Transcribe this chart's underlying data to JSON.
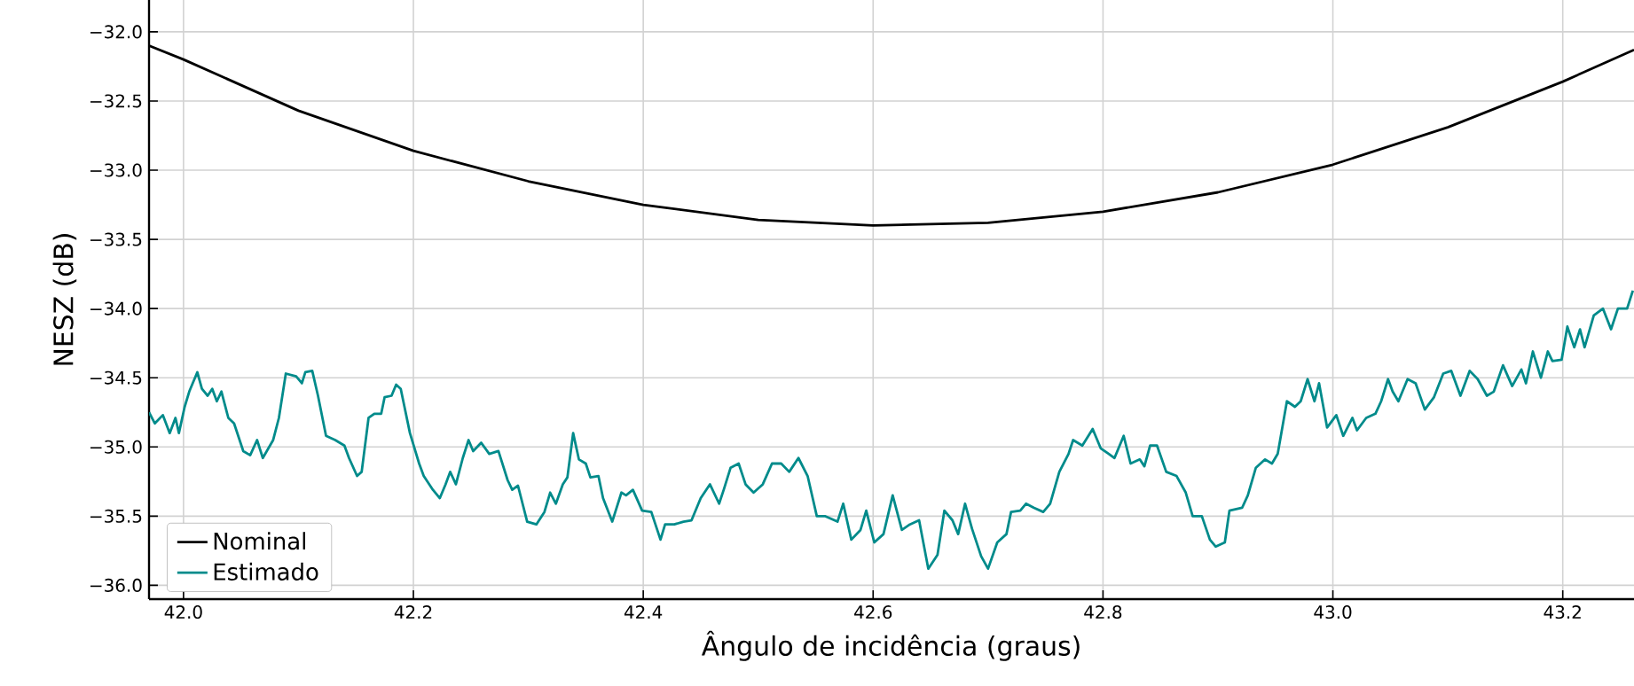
{
  "chart_data": {
    "type": "line",
    "xlabel": "Ângulo de incidência (graus)",
    "ylabel": "NESZ (dB)",
    "xlim": [
      41.97,
      43.262
    ],
    "ylim": [
      -36.1,
      -31.77
    ],
    "xticks": [
      {
        "value": 42.0,
        "label": "42.0"
      },
      {
        "value": 42.2,
        "label": "42.2"
      },
      {
        "value": 42.4,
        "label": "42.4"
      },
      {
        "value": 42.6,
        "label": "42.6"
      },
      {
        "value": 42.8,
        "label": "42.8"
      },
      {
        "value": 43.0,
        "label": "43.0"
      },
      {
        "value": 43.2,
        "label": "43.2"
      }
    ],
    "yticks": [
      {
        "value": -36.0,
        "label": "−36.0"
      },
      {
        "value": -35.5,
        "label": "−35.5"
      },
      {
        "value": -35.0,
        "label": "−35.0"
      },
      {
        "value": -34.5,
        "label": "−34.5"
      },
      {
        "value": -34.0,
        "label": "−34.0"
      },
      {
        "value": -33.5,
        "label": "−33.5"
      },
      {
        "value": -33.0,
        "label": "−33.0"
      },
      {
        "value": -32.5,
        "label": "−32.5"
      },
      {
        "value": -32.0,
        "label": "−32.0"
      }
    ],
    "grid": true,
    "legend": "bottom left",
    "series": [
      {
        "name": "Nominal",
        "color": "#000000",
        "x": [
          41.97,
          42.0,
          42.1,
          42.2,
          42.3,
          42.4,
          42.5,
          42.6,
          42.7,
          42.8,
          42.9,
          43.0,
          43.1,
          43.2,
          43.262
        ],
        "values": [
          -32.1,
          -32.2,
          -32.57,
          -32.86,
          -33.08,
          -33.25,
          -33.36,
          -33.4,
          -33.38,
          -33.3,
          -33.16,
          -32.96,
          -32.69,
          -32.36,
          -32.13
        ]
      },
      {
        "name": "Estimado",
        "color": "#008b8b",
        "x": [
          41.97,
          41.975,
          41.982,
          41.988,
          41.993,
          41.996,
          42.001,
          42.005,
          42.012,
          42.016,
          42.021,
          42.025,
          42.029,
          42.033,
          42.039,
          42.044,
          42.052,
          42.058,
          42.064,
          42.069,
          42.078,
          42.083,
          42.089,
          42.098,
          42.103,
          42.106,
          42.112,
          42.117,
          42.124,
          42.132,
          42.14,
          42.144,
          42.151,
          42.155,
          42.161,
          42.166,
          42.172,
          42.175,
          42.181,
          42.185,
          42.189,
          42.197,
          42.205,
          42.209,
          42.217,
          42.223,
          42.228,
          42.232,
          42.237,
          42.243,
          42.248,
          42.252,
          42.259,
          42.266,
          42.274,
          42.282,
          42.286,
          42.291,
          42.299,
          42.307,
          42.314,
          42.319,
          42.324,
          42.33,
          42.334,
          42.339,
          42.344,
          42.35,
          42.354,
          42.361,
          42.365,
          42.373,
          42.381,
          42.385,
          42.391,
          42.399,
          42.407,
          42.415,
          42.419,
          42.427,
          42.435,
          42.442,
          42.45,
          42.458,
          42.466,
          42.47,
          42.476,
          42.483,
          42.489,
          42.496,
          42.504,
          42.512,
          42.52,
          42.527,
          42.535,
          42.543,
          42.551,
          42.558,
          42.569,
          42.574,
          42.581,
          42.589,
          42.594,
          42.601,
          42.609,
          42.617,
          42.625,
          42.632,
          42.64,
          42.648,
          42.656,
          42.662,
          42.669,
          42.674,
          42.68,
          42.686,
          42.694,
          42.7,
          42.708,
          42.716,
          42.72,
          42.728,
          42.733,
          42.74,
          42.748,
          42.754,
          42.762,
          42.77,
          42.774,
          42.782,
          42.791,
          42.798,
          42.805,
          42.81,
          42.818,
          42.824,
          42.832,
          42.836,
          42.841,
          42.847,
          42.855,
          42.864,
          42.872,
          42.878,
          42.886,
          42.893,
          42.898,
          42.906,
          42.91,
          42.921,
          42.926,
          42.933,
          42.941,
          42.947,
          42.952,
          42.96,
          42.967,
          42.972,
          42.978,
          42.984,
          42.988,
          42.995,
          43.003,
          43.009,
          43.017,
          43.021,
          43.029,
          43.037,
          43.042,
          43.048,
          43.052,
          43.057,
          43.065,
          43.072,
          43.08,
          43.088,
          43.096,
          43.103,
          43.111,
          43.119,
          43.126,
          43.134,
          43.14,
          43.148,
          43.156,
          43.164,
          43.168,
          43.174,
          43.181,
          43.187,
          43.191,
          43.199,
          43.204,
          43.21,
          43.215,
          43.219,
          43.227,
          43.235,
          43.242,
          43.248,
          43.256,
          43.261
        ],
        "values": [
          -34.75,
          -34.83,
          -34.77,
          -34.9,
          -34.79,
          -34.9,
          -34.71,
          -34.6,
          -34.46,
          -34.58,
          -34.63,
          -34.58,
          -34.67,
          -34.6,
          -34.79,
          -34.83,
          -35.03,
          -35.06,
          -34.95,
          -35.08,
          -34.95,
          -34.79,
          -34.47,
          -34.49,
          -34.54,
          -34.46,
          -34.45,
          -34.63,
          -34.92,
          -34.95,
          -34.99,
          -35.08,
          -35.21,
          -35.18,
          -34.79,
          -34.76,
          -34.76,
          -34.64,
          -34.63,
          -34.55,
          -34.58,
          -34.9,
          -35.12,
          -35.21,
          -35.31,
          -35.37,
          -35.27,
          -35.18,
          -35.27,
          -35.08,
          -34.95,
          -35.03,
          -34.97,
          -35.05,
          -35.03,
          -35.24,
          -35.31,
          -35.28,
          -35.54,
          -35.56,
          -35.47,
          -35.33,
          -35.41,
          -35.27,
          -35.22,
          -34.9,
          -35.09,
          -35.12,
          -35.22,
          -35.21,
          -35.37,
          -35.54,
          -35.33,
          -35.35,
          -35.31,
          -35.46,
          -35.47,
          -35.67,
          -35.56,
          -35.56,
          -35.54,
          -35.53,
          -35.37,
          -35.27,
          -35.41,
          -35.31,
          -35.15,
          -35.12,
          -35.27,
          -35.33,
          -35.27,
          -35.12,
          -35.12,
          -35.18,
          -35.08,
          -35.21,
          -35.5,
          -35.5,
          -35.54,
          -35.41,
          -35.67,
          -35.6,
          -35.46,
          -35.69,
          -35.63,
          -35.35,
          -35.6,
          -35.56,
          -35.53,
          -35.88,
          -35.78,
          -35.46,
          -35.53,
          -35.63,
          -35.41,
          -35.59,
          -35.79,
          -35.88,
          -35.69,
          -35.63,
          -35.47,
          -35.46,
          -35.41,
          -35.44,
          -35.47,
          -35.41,
          -35.18,
          -35.05,
          -34.95,
          -34.99,
          -34.87,
          -35.01,
          -35.05,
          -35.08,
          -34.92,
          -35.12,
          -35.09,
          -35.14,
          -34.99,
          -34.99,
          -35.18,
          -35.21,
          -35.33,
          -35.5,
          -35.5,
          -35.67,
          -35.72,
          -35.69,
          -35.46,
          -35.44,
          -35.35,
          -35.15,
          -35.09,
          -35.12,
          -35.05,
          -34.67,
          -34.71,
          -34.67,
          -34.51,
          -34.67,
          -34.54,
          -34.86,
          -34.77,
          -34.92,
          -34.79,
          -34.88,
          -34.79,
          -34.76,
          -34.67,
          -34.51,
          -34.6,
          -34.67,
          -34.51,
          -34.54,
          -34.73,
          -34.64,
          -34.47,
          -34.45,
          -34.63,
          -34.45,
          -34.51,
          -34.63,
          -34.6,
          -34.41,
          -34.56,
          -34.44,
          -34.54,
          -34.31,
          -34.5,
          -34.31,
          -34.38,
          -34.37,
          -34.13,
          -34.28,
          -34.15,
          -34.28,
          -34.05,
          -34.0,
          -34.15,
          -34.0,
          -34.0,
          -33.87
        ]
      }
    ]
  }
}
